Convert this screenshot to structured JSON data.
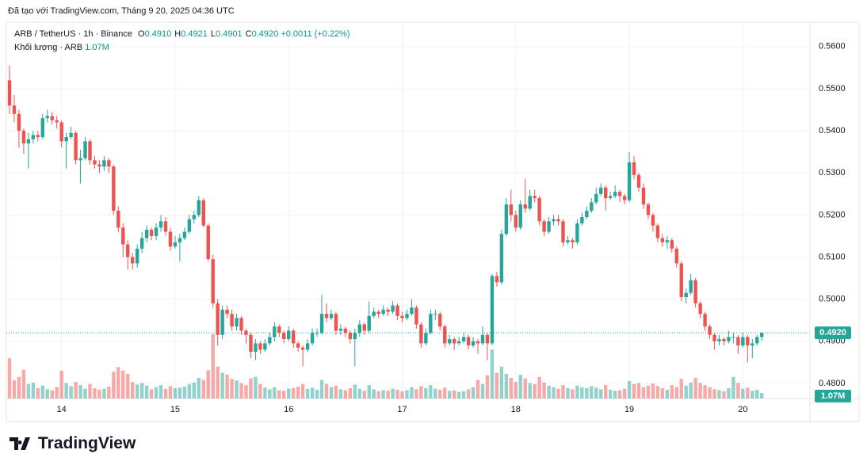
{
  "header": {
    "created": "Đã tạo với TradingView.com, Tháng 9 20, 2025 04:36 UTC"
  },
  "legend": {
    "symbol": "ARB / TetherUS · 1h · Binance",
    "ohlc": [
      {
        "label": "O",
        "value": "0.4910"
      },
      {
        "label": "H",
        "value": "0.4921"
      },
      {
        "label": "L",
        "value": "0.4901"
      },
      {
        "label": "C",
        "value": "0.4920"
      }
    ],
    "change": "+0.0011 (+0.22%)",
    "volume_title": "Khối lượng · ARB",
    "volume_value": "1.07M"
  },
  "logo": "TradingView",
  "chart_data": {
    "type": "candlestick",
    "up_color": "#26a69a",
    "down_color": "#ef5350",
    "ylim": [
      0.4764,
      0.5658
    ],
    "yticks": [
      {
        "value": 0.56,
        "label": "0.5600"
      },
      {
        "value": 0.55,
        "label": "0.5500"
      },
      {
        "value": 0.54,
        "label": "0.5400"
      },
      {
        "value": 0.53,
        "label": "0.5300"
      },
      {
        "value": 0.52,
        "label": "0.5200"
      },
      {
        "value": 0.51,
        "label": "0.5100"
      },
      {
        "value": 0.5,
        "label": "0.5000"
      },
      {
        "value": 0.49,
        "label": "0.4900"
      },
      {
        "value": 0.48,
        "label": "0.4800"
      }
    ],
    "grid": true,
    "last_price_label": "0.4920",
    "volume_label": "1.07M",
    "categories": [
      null,
      null,
      null,
      null,
      null,
      null,
      null,
      null,
      null,
      null,
      null,
      "14",
      null,
      null,
      null,
      null,
      null,
      null,
      null,
      null,
      null,
      null,
      null,
      null,
      null,
      null,
      null,
      null,
      null,
      null,
      null,
      null,
      null,
      null,
      null,
      "15",
      null,
      null,
      null,
      null,
      null,
      null,
      null,
      null,
      null,
      null,
      null,
      null,
      null,
      null,
      null,
      null,
      null,
      null,
      null,
      null,
      null,
      null,
      null,
      "16",
      null,
      null,
      null,
      null,
      null,
      null,
      null,
      null,
      null,
      null,
      null,
      null,
      null,
      null,
      null,
      null,
      null,
      null,
      null,
      null,
      null,
      null,
      null,
      "17",
      null,
      null,
      null,
      null,
      null,
      null,
      null,
      null,
      null,
      null,
      null,
      null,
      null,
      null,
      null,
      null,
      null,
      null,
      null,
      null,
      null,
      null,
      null,
      "18",
      null,
      null,
      null,
      null,
      null,
      null,
      null,
      null,
      null,
      null,
      null,
      null,
      null,
      null,
      null,
      null,
      null,
      null,
      null,
      null,
      null,
      null,
      null,
      "19",
      null,
      null,
      null,
      null,
      null,
      null,
      null,
      null,
      null,
      null,
      null,
      null,
      null,
      null,
      null,
      null,
      null,
      null,
      null,
      null,
      null,
      null,
      null,
      "20",
      null,
      null,
      null,
      null
    ],
    "candles": [
      [
        0.552,
        0.5555,
        0.544,
        0.546
      ],
      [
        0.546,
        0.5485,
        0.542,
        0.544
      ],
      [
        0.544,
        0.545,
        0.536,
        0.54
      ],
      [
        0.54,
        0.5405,
        0.5345,
        0.537
      ],
      [
        0.537,
        0.5395,
        0.531,
        0.538
      ],
      [
        0.538,
        0.54,
        0.537,
        0.539
      ],
      [
        0.539,
        0.54,
        0.5375,
        0.5385
      ],
      [
        0.5385,
        0.544,
        0.538,
        0.543
      ],
      [
        0.543,
        0.545,
        0.542,
        0.5435
      ],
      [
        0.5435,
        0.5445,
        0.5415,
        0.5425
      ],
      [
        0.5425,
        0.5435,
        0.5405,
        0.542
      ],
      [
        0.542,
        0.5425,
        0.536,
        0.5375
      ],
      [
        0.5375,
        0.5395,
        0.531,
        0.5385
      ],
      [
        0.5385,
        0.541,
        0.538,
        0.5395
      ],
      [
        0.5395,
        0.54,
        0.532,
        0.533
      ],
      [
        0.533,
        0.5355,
        0.5275,
        0.5335
      ],
      [
        0.5335,
        0.5385,
        0.533,
        0.5375
      ],
      [
        0.5375,
        0.538,
        0.532,
        0.533
      ],
      [
        0.533,
        0.534,
        0.531,
        0.532
      ],
      [
        0.532,
        0.533,
        0.53,
        0.5315
      ],
      [
        0.5315,
        0.534,
        0.5305,
        0.533
      ],
      [
        0.533,
        0.5335,
        0.53,
        0.5315
      ],
      [
        0.5315,
        0.532,
        0.52,
        0.521
      ],
      [
        0.521,
        0.522,
        0.516,
        0.517
      ],
      [
        0.517,
        0.518,
        0.51,
        0.513
      ],
      [
        0.513,
        0.514,
        0.507,
        0.51
      ],
      [
        0.51,
        0.511,
        0.507,
        0.5085
      ],
      [
        0.5085,
        0.513,
        0.5075,
        0.512
      ],
      [
        0.512,
        0.516,
        0.511,
        0.5145
      ],
      [
        0.5145,
        0.5175,
        0.5135,
        0.5165
      ],
      [
        0.5165,
        0.517,
        0.514,
        0.515
      ],
      [
        0.515,
        0.518,
        0.514,
        0.517
      ],
      [
        0.517,
        0.52,
        0.516,
        0.5185
      ],
      [
        0.5185,
        0.5195,
        0.515,
        0.516
      ],
      [
        0.516,
        0.517,
        0.5115,
        0.5125
      ],
      [
        0.5125,
        0.515,
        0.512,
        0.5135
      ],
      [
        0.5135,
        0.5155,
        0.509,
        0.5145
      ],
      [
        0.5145,
        0.517,
        0.514,
        0.516
      ],
      [
        0.516,
        0.52,
        0.5155,
        0.519
      ],
      [
        0.519,
        0.521,
        0.518,
        0.52
      ],
      [
        0.52,
        0.5245,
        0.5195,
        0.5235
      ],
      [
        0.5235,
        0.524,
        0.517,
        0.5175
      ],
      [
        0.5175,
        0.518,
        0.509,
        0.5095
      ],
      [
        0.5095,
        0.5105,
        0.498,
        0.499
      ],
      [
        0.499,
        0.5,
        0.489,
        0.4915
      ],
      [
        0.4915,
        0.4985,
        0.4905,
        0.4975
      ],
      [
        0.4975,
        0.4985,
        0.4955,
        0.4965
      ],
      [
        0.4965,
        0.4975,
        0.4925,
        0.4935
      ],
      [
        0.4935,
        0.4965,
        0.4925,
        0.4955
      ],
      [
        0.4955,
        0.496,
        0.4915,
        0.4925
      ],
      [
        0.4925,
        0.493,
        0.4895,
        0.4915
      ],
      [
        0.4915,
        0.492,
        0.486,
        0.4875
      ],
      [
        0.4875,
        0.4905,
        0.4855,
        0.4895
      ],
      [
        0.4895,
        0.49,
        0.487,
        0.488
      ],
      [
        0.488,
        0.4905,
        0.4875,
        0.4895
      ],
      [
        0.4895,
        0.492,
        0.489,
        0.491
      ],
      [
        0.491,
        0.4945,
        0.49,
        0.4935
      ],
      [
        0.4935,
        0.494,
        0.491,
        0.492
      ],
      [
        0.492,
        0.4925,
        0.4895,
        0.4905
      ],
      [
        0.4905,
        0.4935,
        0.49,
        0.4925
      ],
      [
        0.4925,
        0.493,
        0.4885,
        0.4895
      ],
      [
        0.4895,
        0.49,
        0.4875,
        0.4885
      ],
      [
        0.4885,
        0.489,
        0.484,
        0.488
      ],
      [
        0.488,
        0.4905,
        0.4875,
        0.4895
      ],
      [
        0.4895,
        0.493,
        0.489,
        0.492
      ],
      [
        0.492,
        0.493,
        0.491,
        0.492
      ],
      [
        0.492,
        0.501,
        0.4915,
        0.4965
      ],
      [
        0.4965,
        0.499,
        0.4945,
        0.4955
      ],
      [
        0.4955,
        0.4975,
        0.495,
        0.4965
      ],
      [
        0.4965,
        0.497,
        0.4915,
        0.4925
      ],
      [
        0.4925,
        0.494,
        0.4915,
        0.493
      ],
      [
        0.493,
        0.4935,
        0.491,
        0.492
      ],
      [
        0.492,
        0.4925,
        0.4895,
        0.4905
      ],
      [
        0.4905,
        0.493,
        0.484,
        0.492
      ],
      [
        0.492,
        0.495,
        0.491,
        0.494
      ],
      [
        0.494,
        0.4945,
        0.4915,
        0.4925
      ],
      [
        0.4925,
        0.4995,
        0.492,
        0.496
      ],
      [
        0.496,
        0.498,
        0.4955,
        0.497
      ],
      [
        0.497,
        0.4975,
        0.4955,
        0.4965
      ],
      [
        0.4965,
        0.4985,
        0.496,
        0.4975
      ],
      [
        0.4975,
        0.498,
        0.496,
        0.497
      ],
      [
        0.497,
        0.4995,
        0.4965,
        0.4985
      ],
      [
        0.4985,
        0.499,
        0.495,
        0.496
      ],
      [
        0.496,
        0.497,
        0.4945,
        0.4955
      ],
      [
        0.4955,
        0.4975,
        0.495,
        0.4965
      ],
      [
        0.4965,
        0.5,
        0.496,
        0.498
      ],
      [
        0.498,
        0.4985,
        0.493,
        0.494
      ],
      [
        0.494,
        0.4945,
        0.4885,
        0.4895
      ],
      [
        0.4895,
        0.493,
        0.489,
        0.492
      ],
      [
        0.492,
        0.4975,
        0.4915,
        0.4965
      ],
      [
        0.4965,
        0.4975,
        0.495,
        0.4965
      ],
      [
        0.4965,
        0.497,
        0.4925,
        0.4935
      ],
      [
        0.4935,
        0.494,
        0.4885,
        0.4895
      ],
      [
        0.4895,
        0.4915,
        0.489,
        0.4905
      ],
      [
        0.4905,
        0.491,
        0.488,
        0.4895
      ],
      [
        0.4895,
        0.491,
        0.489,
        0.49
      ],
      [
        0.49,
        0.492,
        0.4895,
        0.491
      ],
      [
        0.491,
        0.4915,
        0.488,
        0.489
      ],
      [
        0.489,
        0.491,
        0.4885,
        0.49
      ],
      [
        0.49,
        0.4905,
        0.487,
        0.4895
      ],
      [
        0.4895,
        0.4935,
        0.489,
        0.4915
      ],
      [
        0.4915,
        0.492,
        0.4855,
        0.4895
      ],
      [
        0.4895,
        0.506,
        0.489,
        0.5055
      ],
      [
        0.5055,
        0.5065,
        0.503,
        0.504
      ],
      [
        0.504,
        0.5165,
        0.5035,
        0.5155
      ],
      [
        0.5155,
        0.524,
        0.515,
        0.5225
      ],
      [
        0.5225,
        0.526,
        0.5185,
        0.52
      ],
      [
        0.52,
        0.521,
        0.516,
        0.517
      ],
      [
        0.517,
        0.5235,
        0.5165,
        0.5225
      ],
      [
        0.5225,
        0.5285,
        0.5205,
        0.5215
      ],
      [
        0.5215,
        0.526,
        0.521,
        0.5245
      ],
      [
        0.5245,
        0.526,
        0.523,
        0.524
      ],
      [
        0.524,
        0.5245,
        0.5175,
        0.5185
      ],
      [
        0.5185,
        0.519,
        0.515,
        0.516
      ],
      [
        0.516,
        0.5195,
        0.5155,
        0.5185
      ],
      [
        0.5185,
        0.52,
        0.5175,
        0.519
      ],
      [
        0.519,
        0.52,
        0.5175,
        0.5185
      ],
      [
        0.5185,
        0.519,
        0.5125,
        0.5135
      ],
      [
        0.5135,
        0.515,
        0.513,
        0.514
      ],
      [
        0.514,
        0.5145,
        0.512,
        0.5135
      ],
      [
        0.5135,
        0.519,
        0.513,
        0.518
      ],
      [
        0.518,
        0.5205,
        0.5175,
        0.5195
      ],
      [
        0.5195,
        0.522,
        0.519,
        0.521
      ],
      [
        0.521,
        0.524,
        0.5205,
        0.523
      ],
      [
        0.523,
        0.5265,
        0.5225,
        0.525
      ],
      [
        0.525,
        0.5275,
        0.5245,
        0.5265
      ],
      [
        0.5265,
        0.527,
        0.521,
        0.524
      ],
      [
        0.524,
        0.5255,
        0.5235,
        0.5245
      ],
      [
        0.5245,
        0.527,
        0.524,
        0.5255
      ],
      [
        0.5255,
        0.526,
        0.523,
        0.5245
      ],
      [
        0.5245,
        0.525,
        0.5225,
        0.5235
      ],
      [
        0.5235,
        0.535,
        0.523,
        0.5325
      ],
      [
        0.5325,
        0.534,
        0.5285,
        0.5295
      ],
      [
        0.5295,
        0.53,
        0.5255,
        0.5265
      ],
      [
        0.5265,
        0.5275,
        0.5215,
        0.5225
      ],
      [
        0.5225,
        0.523,
        0.519,
        0.52
      ],
      [
        0.52,
        0.5205,
        0.516,
        0.5175
      ],
      [
        0.5175,
        0.518,
        0.5135,
        0.5145
      ],
      [
        0.5145,
        0.5155,
        0.5125,
        0.5135
      ],
      [
        0.5135,
        0.515,
        0.512,
        0.514
      ],
      [
        0.514,
        0.5145,
        0.511,
        0.512
      ],
      [
        0.512,
        0.5125,
        0.5075,
        0.5085
      ],
      [
        0.5085,
        0.509,
        0.4995,
        0.5005
      ],
      [
        0.5005,
        0.5025,
        0.499,
        0.5015
      ],
      [
        0.5015,
        0.506,
        0.501,
        0.5045
      ],
      [
        0.5045,
        0.505,
        0.498,
        0.499
      ],
      [
        0.499,
        0.4995,
        0.4955,
        0.4965
      ],
      [
        0.4965,
        0.497,
        0.4925,
        0.4935
      ],
      [
        0.4935,
        0.494,
        0.4905,
        0.4915
      ],
      [
        0.4915,
        0.492,
        0.488,
        0.49
      ],
      [
        0.49,
        0.4915,
        0.489,
        0.4905
      ],
      [
        0.4905,
        0.491,
        0.489,
        0.49
      ],
      [
        0.49,
        0.4925,
        0.4895,
        0.491
      ],
      [
        0.491,
        0.492,
        0.4895,
        0.491
      ],
      [
        0.491,
        0.4915,
        0.487,
        0.489
      ],
      [
        0.489,
        0.492,
        0.4885,
        0.491
      ],
      [
        0.491,
        0.4915,
        0.485,
        0.489
      ],
      [
        0.489,
        0.4905,
        0.486,
        0.4895
      ],
      [
        0.4895,
        0.4915,
        0.489,
        0.491
      ],
      [
        0.491,
        0.4921,
        0.4901,
        0.492
      ]
    ],
    "volume": [
      7.8,
      3.5,
      4.2,
      5.6,
      2.8,
      3.1,
      2.0,
      2.5,
      1.8,
      1.6,
      2.2,
      5.4,
      3.0,
      2.4,
      3.2,
      2.6,
      1.9,
      2.8,
      2.0,
      1.7,
      1.9,
      2.3,
      5.2,
      6.1,
      5.4,
      4.8,
      3.2,
      2.7,
      3.0,
      2.5,
      1.8,
      2.2,
      2.6,
      1.9,
      2.4,
      2.0,
      2.1,
      2.3,
      2.8,
      3.1,
      4.0,
      3.6,
      5.5,
      12.5,
      6.2,
      5.0,
      4.6,
      3.8,
      3.5,
      3.0,
      2.6,
      3.9,
      4.2,
      2.8,
      2.1,
      1.8,
      2.2,
      1.6,
      1.5,
      1.9,
      2.0,
      2.3,
      2.8,
      1.9,
      2.1,
      1.7,
      3.6,
      2.8,
      2.2,
      2.5,
      1.8,
      1.6,
      2.0,
      2.7,
      1.9,
      1.5,
      2.6,
      1.8,
      1.4,
      1.6,
      1.5,
      1.9,
      1.7,
      1.4,
      1.6,
      2.2,
      1.8,
      2.4,
      2.0,
      2.6,
      1.9,
      1.7,
      2.1,
      1.5,
      1.6,
      1.3,
      1.4,
      1.8,
      2.2,
      3.6,
      2.8,
      4.5,
      9.5,
      5.0,
      6.2,
      4.8,
      4.0,
      3.2,
      4.6,
      3.9,
      3.0,
      2.8,
      4.2,
      3.1,
      2.5,
      2.2,
      1.9,
      2.6,
      2.0,
      1.8,
      2.5,
      2.2,
      2.0,
      2.4,
      2.1,
      1.8,
      2.6,
      1.7,
      1.5,
      1.6,
      1.9,
      3.4,
      2.8,
      3.0,
      2.2,
      2.5,
      2.9,
      2.4,
      2.0,
      1.7,
      2.6,
      2.2,
      3.8,
      2.5,
      3.1,
      4.0,
      3.0,
      2.6,
      2.2,
      1.8,
      1.6,
      1.4,
      2.0,
      4.2,
      3.0,
      1.9,
      2.1,
      1.5,
      1.7,
      1.07
    ]
  }
}
